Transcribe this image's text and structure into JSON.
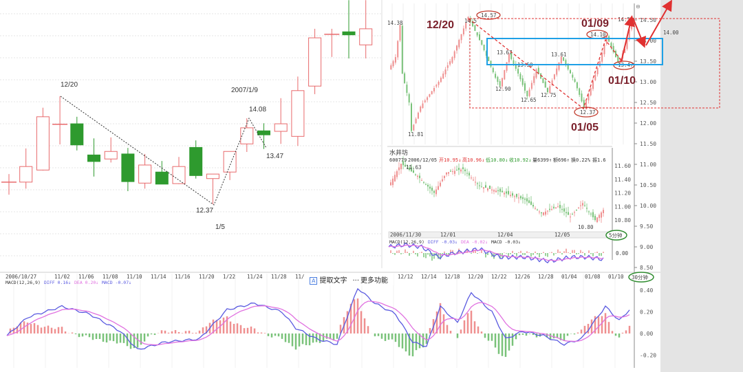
{
  "colors": {
    "up": "#e8696b",
    "down": "#2e9a2e",
    "up_thin": "#ef8f8f",
    "down_thin": "#79c279",
    "diff": "#5a5ae0",
    "dea": "#e070e0",
    "annot": "#e03030",
    "box": "#1ea0e6",
    "circle_green": "#2e8b2e",
    "title_dark": "#7a1f2a"
  },
  "toolbar": {
    "extract_text": "提取文字",
    "more": "更多功能",
    "extract_icon": "A",
    "more_icon": "···"
  },
  "chart_data": [
    {
      "type": "candlestick",
      "name": "daily-zoom",
      "ohlc": [
        [
          12.81,
          12.97,
          12.56,
          12.81
        ],
        [
          12.81,
          13.48,
          12.68,
          13.12
        ],
        [
          13.05,
          14.29,
          13.04,
          14.11
        ],
        [
          13.96,
          14.52,
          13.56,
          13.96
        ],
        [
          13.97,
          14.11,
          13.44,
          13.55
        ],
        [
          13.35,
          13.68,
          12.92,
          13.22
        ],
        [
          13.27,
          13.7,
          13.2,
          13.42
        ],
        [
          13.37,
          13.49,
          12.63,
          12.82
        ],
        [
          12.79,
          13.37,
          12.68,
          13.15
        ],
        [
          13.01,
          13.23,
          12.77,
          12.77
        ],
        [
          12.78,
          13.31,
          12.77,
          13.12
        ],
        [
          13.5,
          13.64,
          12.88,
          12.94
        ],
        [
          12.88,
          12.97,
          12.37,
          12.97
        ],
        [
          13.01,
          13.42,
          12.85,
          13.42
        ],
        [
          13.57,
          14.08,
          13.41,
          13.89
        ],
        [
          13.83,
          13.98,
          13.47,
          13.75
        ],
        [
          13.82,
          14.48,
          13.57,
          13.97
        ],
        [
          13.72,
          14.91,
          13.53,
          14.63
        ],
        [
          14.72,
          15.86,
          14.56,
          15.68
        ],
        [
          15.75,
          15.86,
          15.3,
          15.75
        ],
        [
          15.8,
          16.43,
          15.27,
          15.74
        ],
        [
          15.54,
          16.43,
          15.27,
          15.86
        ]
      ],
      "annotations": {
        "peak_date": "12/20",
        "low_value": "12.37",
        "low_date": "1/5",
        "high_date": "2007/1/9",
        "high_value": "14.08",
        "pullback_value": "13.47"
      }
    },
    {
      "type": "candlestick",
      "name": "30min",
      "waypoints": [
        [
          0,
          13.3
        ],
        [
          3,
          13.6
        ],
        [
          5,
          14.38
        ],
        [
          6,
          13.2
        ],
        [
          9,
          12.5
        ],
        [
          10,
          11.81
        ],
        [
          14,
          12.4
        ],
        [
          22,
          13.0
        ],
        [
          28,
          13.6
        ],
        [
          35,
          14.57
        ],
        [
          41,
          13.9
        ],
        [
          47,
          13.1
        ],
        [
          49,
          12.9
        ],
        [
          53,
          13.67
        ],
        [
          57,
          13.2
        ],
        [
          61,
          12.65
        ],
        [
          65,
          13.3
        ],
        [
          70,
          12.75
        ],
        [
          76,
          13.61
        ],
        [
          82,
          13.0
        ],
        [
          86,
          12.37
        ],
        [
          93,
          13.5
        ],
        [
          96,
          14.1
        ],
        [
          101,
          13.47
        ],
        [
          104,
          13.8
        ],
        [
          107,
          14.5
        ]
      ],
      "labels": {
        "a": "14.38",
        "b": "14.5",
        "c": "14.57",
        "d": "13.67",
        "e": "13.50",
        "f": "13.61",
        "g": "12.90",
        "h": "12.65",
        "i": "12.75",
        "j": "11.81",
        "k": "14.10",
        "l": "12.37",
        "m": "13.47",
        "n": "14.50",
        "o": "14.00"
      },
      "big_labels": {
        "p1": "12/20",
        "p2": "01/09",
        "p3": "01/10",
        "p4": "01/05"
      },
      "yaxis": [
        "14.50",
        "14.00",
        "13.50",
        "13.00",
        "12.50",
        "12.00",
        "11.50",
        "11.00",
        "10.50",
        "10.00",
        "9.50",
        "9.00",
        "8.50"
      ],
      "yaxis_vals": [
        14.5,
        14.0,
        13.5,
        13.0,
        12.5,
        12.0,
        11.5,
        11.0,
        10.5,
        10.0,
        9.5,
        9.0,
        8.5
      ],
      "corner_icon": "⊟"
    },
    {
      "type": "candlestick",
      "name": "5min",
      "title": "水井坊",
      "info": {
        "code": "600779",
        "date": "2006/12/05",
        "open": "开10.95↓",
        "high": "高10.96↓",
        "low": "低10.80↓",
        "close": "收10.92↓",
        "vol": "量6399↑",
        "amt": "额696↑",
        "turn": "换0.22%",
        "amp": "振1.6"
      },
      "waypoints": [
        [
          0,
          11.3
        ],
        [
          6,
          11.63
        ],
        [
          14,
          11.45
        ],
        [
          22,
          11.2
        ],
        [
          28,
          11.5
        ],
        [
          36,
          11.55
        ],
        [
          44,
          11.3
        ],
        [
          56,
          11.2
        ],
        [
          66,
          11.1
        ],
        [
          74,
          10.9
        ],
        [
          82,
          11.0
        ],
        [
          88,
          10.85
        ],
        [
          94,
          11.05
        ],
        [
          100,
          10.8
        ],
        [
          104,
          10.95
        ]
      ],
      "labels": {
        "hi": "11.63",
        "lo": "10.80"
      },
      "yaxis": [
        "11.60",
        "11.40",
        "11.20",
        "11.00",
        "10.80"
      ],
      "yaxis_vals": [
        11.6,
        11.4,
        11.2,
        11.0,
        10.8
      ],
      "xaxis": [
        "2006/11/30",
        "12/01",
        "12/04",
        "12/05"
      ],
      "period": "5分钟",
      "macd_label": "MACD(12,26,9)",
      "diff": "DIFF -0.03↓",
      "dea": "DEA -0.02↓",
      "macd": "MACD -0.03↓",
      "zero": "0.00",
      "macd_waypoints": [
        [
          0,
          0.03
        ],
        [
          8,
          0.04
        ],
        [
          16,
          0.03
        ],
        [
          24,
          -0.02
        ],
        [
          32,
          0.0
        ],
        [
          44,
          0.02
        ],
        [
          54,
          -0.02
        ],
        [
          66,
          -0.02
        ],
        [
          78,
          -0.04
        ],
        [
          88,
          -0.02
        ],
        [
          96,
          -0.02
        ],
        [
          104,
          -0.03
        ]
      ]
    },
    {
      "type": "line",
      "name": "macd",
      "label": "MACD(12,26,9)",
      "diff": "DIFF 0.16↓",
      "dea": "DEA 0.20↓",
      "macd": "MACD -0.07↓",
      "yaxis": [
        "0.40",
        "0.20",
        "0.00",
        "-0.20"
      ],
      "yaxis_vals": [
        0.4,
        0.2,
        0.0,
        -0.2
      ],
      "diff_waypoints": [
        [
          0,
          -0.02
        ],
        [
          6,
          0.15
        ],
        [
          16,
          0.25
        ],
        [
          24,
          0.18
        ],
        [
          33,
          0.02
        ],
        [
          38,
          -0.15
        ],
        [
          46,
          -0.08
        ],
        [
          56,
          -0.05
        ],
        [
          64,
          0.22
        ],
        [
          72,
          0.28
        ],
        [
          80,
          0.2
        ],
        [
          84,
          0.05
        ],
        [
          90,
          -0.05
        ],
        [
          96,
          -0.1
        ],
        [
          102,
          0.42
        ],
        [
          107,
          0.28
        ],
        [
          113,
          0.18
        ],
        [
          118,
          -0.08
        ],
        [
          122,
          -0.12
        ],
        [
          126,
          0.25
        ],
        [
          131,
          0.1
        ],
        [
          135,
          0.38
        ],
        [
          141,
          0.2
        ],
        [
          145,
          -0.05
        ],
        [
          150,
          0.02
        ],
        [
          156,
          -0.02
        ],
        [
          162,
          -0.1
        ],
        [
          167,
          -0.05
        ],
        [
          174,
          0.25
        ],
        [
          178,
          0.12
        ],
        [
          181,
          0.22
        ]
      ]
    },
    {
      "type": "axis",
      "name": "x-labels",
      "left": [
        "2006/10/27",
        "11/02",
        "11/06",
        "11/08",
        "11/10",
        "11/14",
        "11/16",
        "11/20",
        "1/22",
        "11/24",
        "11/28",
        "11/"
      ],
      "right": [
        "12/12",
        "12/14",
        "12/18",
        "12/20",
        "12/22",
        "12/26",
        "12/28",
        "01/04",
        "01/08",
        "01/10"
      ],
      "period": "30分钟"
    }
  ]
}
